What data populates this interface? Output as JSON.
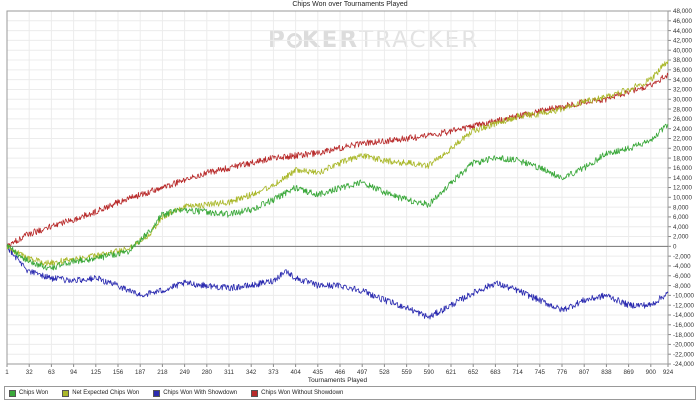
{
  "chart_data": {
    "type": "line",
    "title": "Chips Won over Tournaments Played",
    "xlabel": "Tournaments Played",
    "ylabel": "",
    "watermark_parts": [
      "P",
      "KER",
      "TRACKER"
    ],
    "xlim": [
      1,
      924
    ],
    "ylim": [
      -24000,
      48000
    ],
    "grid": true,
    "legend_position": "bottom",
    "x_ticks": [
      1,
      32,
      63,
      94,
      125,
      156,
      187,
      218,
      249,
      280,
      311,
      342,
      373,
      404,
      435,
      466,
      497,
      528,
      559,
      590,
      621,
      652,
      683,
      714,
      745,
      776,
      807,
      838,
      869,
      900,
      924
    ],
    "y_ticks": [
      -24000,
      -22000,
      -20000,
      -18000,
      -16000,
      -14000,
      -12000,
      -10000,
      -8000,
      -6000,
      -4000,
      -2000,
      0,
      2000,
      4000,
      6000,
      8000,
      10000,
      12000,
      14000,
      16000,
      18000,
      20000,
      22000,
      24000,
      26000,
      28000,
      30000,
      32000,
      34000,
      36000,
      38000,
      40000,
      42000,
      44000,
      46000,
      48000
    ],
    "y_tick_labels": [
      "-24,000",
      "-22,000",
      "-20,000",
      "-18,000",
      "-16,000",
      "-14,000",
      "-12,000",
      "-10,000",
      "-8,000",
      "-6,000",
      "-4,000",
      "-2,000",
      "0",
      "2,000",
      "4,000",
      "6,000",
      "8,000",
      "10,000",
      "12,000",
      "14,000",
      "16,000",
      "18,000",
      "20,000",
      "22,000",
      "24,000",
      "26,000",
      "28,000",
      "30,000",
      "32,000",
      "34,000",
      "36,000",
      "38,000",
      "40,000",
      "42,000",
      "44,000",
      "46,000",
      "48,000"
    ],
    "series": [
      {
        "name": "Chips Won",
        "color": "#3aa83a",
        "x": [
          1,
          30,
          60,
          95,
          125,
          155,
          170,
          200,
          218,
          249,
          280,
          311,
          342,
          373,
          404,
          435,
          466,
          497,
          528,
          559,
          590,
          621,
          652,
          683,
          714,
          745,
          760,
          776,
          807,
          838,
          869,
          900,
          924
        ],
        "y": [
          0,
          -3000,
          -4500,
          -3000,
          -2500,
          -1500,
          -1000,
          3000,
          6500,
          7500,
          7000,
          6500,
          7500,
          9500,
          12000,
          10500,
          12000,
          13000,
          11000,
          9500,
          8500,
          13000,
          17000,
          18000,
          17500,
          16000,
          15000,
          14000,
          16000,
          19000,
          20000,
          21500,
          25000
        ]
      },
      {
        "name": "Net Expected Chips Won",
        "color": "#aab82a",
        "x": [
          1,
          30,
          60,
          95,
          125,
          155,
          170,
          200,
          218,
          249,
          280,
          311,
          342,
          373,
          404,
          435,
          466,
          497,
          528,
          559,
          590,
          621,
          652,
          683,
          714,
          745,
          776,
          807,
          838,
          869,
          900,
          924
        ],
        "y": [
          0,
          -2500,
          -3500,
          -2500,
          -2000,
          -1000,
          -500,
          2500,
          6000,
          8000,
          8500,
          9000,
          10500,
          12500,
          15500,
          15000,
          17000,
          18500,
          17500,
          17000,
          16500,
          20000,
          23500,
          25000,
          26500,
          27000,
          28000,
          29500,
          30500,
          32000,
          34000,
          38000
        ]
      },
      {
        "name": "Chips Won With Showdown",
        "color": "#2b2bb0",
        "x": [
          1,
          30,
          63,
          94,
          125,
          156,
          187,
          218,
          249,
          280,
          311,
          342,
          373,
          390,
          404,
          435,
          466,
          497,
          528,
          559,
          590,
          621,
          652,
          683,
          714,
          745,
          776,
          807,
          838,
          869,
          900,
          924
        ],
        "y": [
          0,
          -5000,
          -6500,
          -7000,
          -6500,
          -8000,
          -10000,
          -9000,
          -7500,
          -8000,
          -8500,
          -8000,
          -7000,
          -5000,
          -6500,
          -8000,
          -8000,
          -9000,
          -11000,
          -12500,
          -14500,
          -12000,
          -9500,
          -7500,
          -9000,
          -11000,
          -13000,
          -11000,
          -10000,
          -12000,
          -12000,
          -9500
        ]
      },
      {
        "name": "Chips Won Without Showdown",
        "color": "#b82a2a",
        "x": [
          1,
          31,
          62,
          94,
          125,
          156,
          187,
          218,
          249,
          280,
          311,
          342,
          373,
          404,
          435,
          466,
          497,
          528,
          559,
          590,
          621,
          652,
          683,
          714,
          745,
          776,
          807,
          838,
          869,
          900,
          924
        ],
        "y": [
          0,
          2500,
          4000,
          5500,
          7000,
          9000,
          10500,
          12000,
          13500,
          15000,
          16000,
          17000,
          18000,
          18500,
          19000,
          20000,
          21000,
          21500,
          22000,
          22500,
          23500,
          24500,
          25500,
          26500,
          27500,
          28500,
          29500,
          30000,
          31500,
          33000,
          35000
        ]
      }
    ]
  }
}
